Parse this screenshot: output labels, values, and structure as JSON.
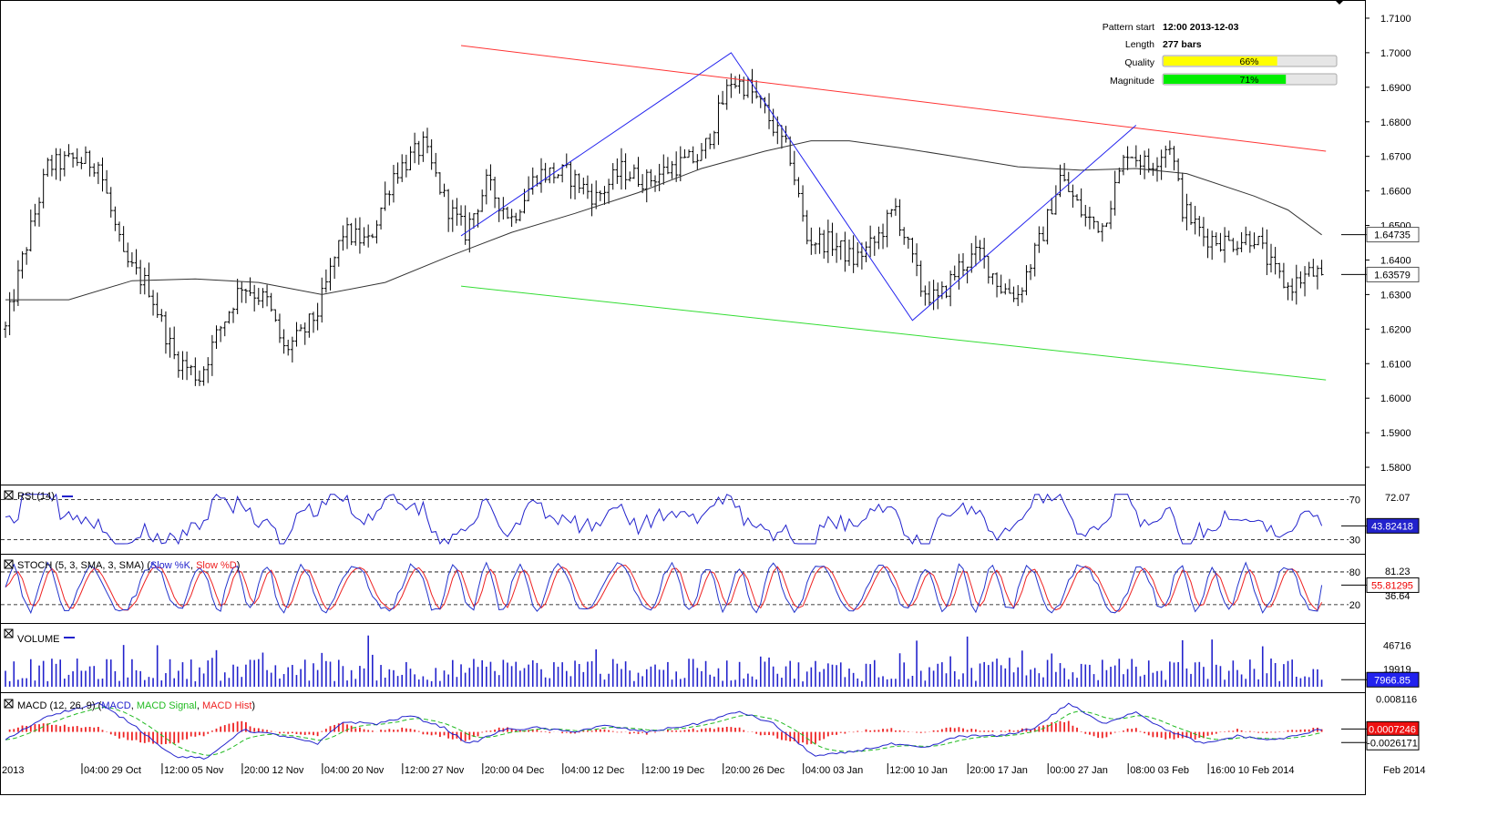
{
  "pattern_info": {
    "pattern_start_label": "Pattern start",
    "pattern_start_value": "12:00 2013-12-03",
    "length_label": "Length",
    "length_value": "277 bars",
    "quality_label": "Quality",
    "quality_value": "66%",
    "quality_fraction": 0.66,
    "magnitude_label": "Magnitude",
    "magnitude_value": "71%",
    "magnitude_fraction": 0.71
  },
  "colors": {
    "resistance": "#ff3333",
    "support": "#33dd33",
    "zigzag": "#2222ee",
    "bars": "#000000",
    "ma": "#333333",
    "rsi": "#2222cc",
    "stoch_k": "#2233cc",
    "stoch_d": "#ee2222",
    "volume": "#2222cc",
    "macd": "#2222cc",
    "macd_signal": "#22bb22",
    "macd_hist": "#ee2222",
    "quality_bar": "#ffff00",
    "magnitude_bar": "#00ee00"
  },
  "chart_data": [
    {
      "type": "candlestick",
      "name": "price",
      "ylim": [
        1.575,
        1.715
      ],
      "y_ticks": [
        "1.7100",
        "1.7000",
        "1.6900",
        "1.6800",
        "1.6700",
        "1.6600",
        "1.6500",
        "1.6400",
        "1.6300",
        "1.6200",
        "1.6100",
        "1.6000",
        "1.5900",
        "1.5800"
      ],
      "y_tick_values": [
        1.71,
        1.7,
        1.69,
        1.68,
        1.67,
        1.66,
        1.65,
        1.64,
        1.63,
        1.62,
        1.61,
        1.6,
        1.59,
        1.58
      ],
      "x_labels": [
        "2013",
        "04:00 29 Oct",
        "12:00 05 Nov",
        "20:00 12 Nov",
        "04:00 20 Nov",
        "12:00 27 Nov",
        "20:00 04 Dec",
        "04:00 12 Dec",
        "12:00 19 Dec",
        "20:00 26 Dec",
        "04:00 03 Jan",
        "12:00 10 Jan",
        "20:00 17 Jan",
        "00:00 27 Jan",
        "08:00 03 Feb",
        "16:00 10 Feb 2014",
        "Feb 2014"
      ],
      "x_label_bar_index": [
        0,
        19,
        38,
        57,
        76,
        95,
        114,
        133,
        152,
        171,
        190,
        210,
        229,
        248,
        267,
        286,
        310
      ],
      "anchors": [
        [
          0,
          1.62
        ],
        [
          4,
          1.64
        ],
        [
          10,
          1.667
        ],
        [
          16,
          1.669
        ],
        [
          22,
          1.668
        ],
        [
          28,
          1.64
        ],
        [
          34,
          1.632
        ],
        [
          40,
          1.612
        ],
        [
          46,
          1.606
        ],
        [
          50,
          1.618
        ],
        [
          56,
          1.633
        ],
        [
          62,
          1.628
        ],
        [
          66,
          1.614
        ],
        [
          70,
          1.618
        ],
        [
          74,
          1.625
        ],
        [
          80,
          1.648
        ],
        [
          86,
          1.645
        ],
        [
          92,
          1.665
        ],
        [
          99,
          1.673
        ],
        [
          105,
          1.655
        ],
        [
          109,
          1.648
        ],
        [
          114,
          1.662
        ],
        [
          120,
          1.652
        ],
        [
          126,
          1.665
        ],
        [
          133,
          1.665
        ],
        [
          140,
          1.658
        ],
        [
          146,
          1.666
        ],
        [
          152,
          1.663
        ],
        [
          158,
          1.667
        ],
        [
          165,
          1.67
        ],
        [
          172,
          1.692
        ],
        [
          176,
          1.69
        ],
        [
          180,
          1.683
        ],
        [
          186,
          1.67
        ],
        [
          190,
          1.646
        ],
        [
          196,
          1.645
        ],
        [
          201,
          1.64
        ],
        [
          206,
          1.645
        ],
        [
          211,
          1.655
        ],
        [
          217,
          1.632
        ],
        [
          221,
          1.628
        ],
        [
          226,
          1.638
        ],
        [
          231,
          1.642
        ],
        [
          236,
          1.632
        ],
        [
          240,
          1.63
        ],
        [
          246,
          1.648
        ],
        [
          250,
          1.664
        ],
        [
          256,
          1.652
        ],
        [
          260,
          1.65
        ],
        [
          266,
          1.672
        ],
        [
          271,
          1.667
        ],
        [
          276,
          1.674
        ],
        [
          279,
          1.655
        ],
        [
          284,
          1.647
        ],
        [
          290,
          1.645
        ],
        [
          296,
          1.647
        ],
        [
          300,
          1.638
        ],
        [
          304,
          1.632
        ],
        [
          309,
          1.636
        ],
        [
          312,
          1.636
        ]
      ],
      "bar_count": 313,
      "last_price": "1.63579",
      "last_price_value": 1.63579,
      "ma_label_value": "1.64735",
      "ma_label_number": 1.64735,
      "moving_average": [
        [
          0,
          1.6285
        ],
        [
          15,
          1.6285
        ],
        [
          30,
          1.634
        ],
        [
          45,
          1.6345
        ],
        [
          60,
          1.6335
        ],
        [
          75,
          1.63
        ],
        [
          90,
          1.6335
        ],
        [
          105,
          1.641
        ],
        [
          120,
          1.648
        ],
        [
          135,
          1.6535
        ],
        [
          150,
          1.6595
        ],
        [
          165,
          1.6665
        ],
        [
          180,
          1.6715
        ],
        [
          191,
          1.6745
        ],
        [
          200,
          1.6745
        ],
        [
          212,
          1.6725
        ],
        [
          225,
          1.67
        ],
        [
          240,
          1.667
        ],
        [
          255,
          1.666
        ],
        [
          268,
          1.6665
        ],
        [
          280,
          1.665
        ],
        [
          296,
          1.6585
        ],
        [
          304,
          1.6545
        ],
        [
          312,
          1.6473
        ]
      ],
      "channel_resistance": [
        [
          -2,
          1.7185
        ],
        [
          313,
          1.6715
        ]
      ],
      "channel_support": [
        [
          -2,
          1.647
        ],
        [
          313,
          1.6053
        ]
      ],
      "zigzag": [
        [
          108,
          1.647
        ],
        [
          172,
          1.7
        ],
        [
          215,
          1.6225
        ],
        [
          268,
          1.679
        ]
      ]
    },
    {
      "type": "line",
      "name": "RSI (14)",
      "title": "RSI (14)",
      "levels": [
        70,
        30
      ],
      "level_labels": [
        "70",
        "30"
      ],
      "axis_labels": [
        "72.07"
      ],
      "axis_values": [
        72.07
      ],
      "ylim": [
        17,
        83
      ],
      "last_value": "43.82418",
      "last_value_number": 43.82418
    },
    {
      "type": "line",
      "name": "STOCH (5, 3, SMA, 3, SMA)",
      "title": "STOCH (5, 3, SMA, 3, SMA)",
      "legend": [
        "Slow %K",
        "Slow %D"
      ],
      "levels": [
        80,
        20
      ],
      "level_labels": [
        "80",
        "20"
      ],
      "axis_labels": [
        "81.23",
        "36.64"
      ],
      "axis_values": [
        81.23,
        36.64
      ],
      "ylim": [
        -12,
        110
      ],
      "last_value": "55.81295",
      "last_value_number": 55.81295
    },
    {
      "type": "bar",
      "name": "VOLUME",
      "title": "VOLUME",
      "axis_labels": [
        "46716",
        "19919"
      ],
      "axis_values": [
        46716,
        19919
      ],
      "ylim": [
        0,
        70000
      ],
      "last_value": "7966.85",
      "last_value_number": 7966.85
    },
    {
      "type": "line",
      "name": "MACD (12, 26, 9)",
      "title": "MACD (12, 26, 9)",
      "legend": [
        "MACD",
        "MACD Signal",
        "MACD Hist"
      ],
      "axis_labels": [
        "0.008116"
      ],
      "axis_values": [
        0.008116
      ],
      "ylim": [
        -0.0077,
        0.0093
      ],
      "last_value": "0.0007246",
      "last_value_number": 0.0007246,
      "signal_last_value": "-0.0026171",
      "signal_last_value_number": -0.0026171,
      "macd_anchors": [
        [
          0,
          -0.002
        ],
        [
          10,
          0.004
        ],
        [
          22,
          0.007
        ],
        [
          30,
          0.002
        ],
        [
          40,
          -0.006
        ],
        [
          48,
          -0.0065
        ],
        [
          56,
          0.0005
        ],
        [
          66,
          -0.001
        ],
        [
          74,
          -0.003
        ],
        [
          80,
          0.0025
        ],
        [
          88,
          0.002
        ],
        [
          96,
          0.004
        ],
        [
          104,
          0.001
        ],
        [
          110,
          -0.003
        ],
        [
          118,
          0.0005
        ],
        [
          126,
          0.001
        ],
        [
          134,
          0.0
        ],
        [
          142,
          0.0015
        ],
        [
          152,
          0.0
        ],
        [
          164,
          0.002
        ],
        [
          174,
          0.005
        ],
        [
          182,
          0.002
        ],
        [
          192,
          -0.006
        ],
        [
          200,
          -0.005
        ],
        [
          210,
          -0.003
        ],
        [
          218,
          -0.004
        ],
        [
          226,
          -0.001
        ],
        [
          236,
          -0.001
        ],
        [
          244,
          0.001
        ],
        [
          252,
          0.007
        ],
        [
          260,
          0.002
        ],
        [
          268,
          0.005
        ],
        [
          274,
          0.001
        ],
        [
          284,
          -0.003
        ],
        [
          292,
          -0.001
        ],
        [
          300,
          -0.002
        ],
        [
          306,
          -0.001
        ],
        [
          312,
          0.0007
        ]
      ]
    }
  ]
}
